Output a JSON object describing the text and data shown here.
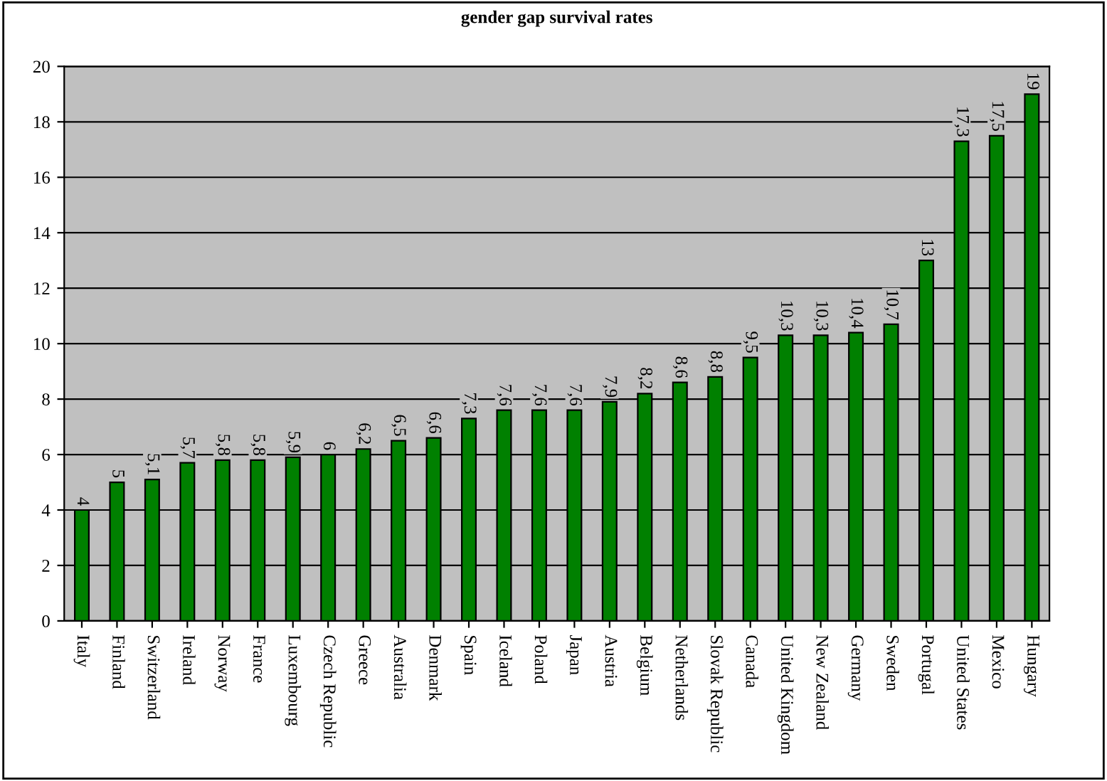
{
  "chart_data": {
    "type": "bar",
    "title": "gender gap survival rates",
    "categories": [
      "Italy",
      "Finland",
      "Switzerland",
      "Ireland",
      "Norway",
      "France",
      "Luxembourg",
      "Czech Republic",
      "Greece",
      "Australia",
      "Denmark",
      "Spain",
      "Iceland",
      "Poland",
      "Japan",
      "Austria",
      "Belgium",
      "Netherlands",
      "Slovak Republic",
      "Canada",
      "United Kingdom",
      "New Zealand",
      "Germany",
      "Sweden",
      "Portugal",
      "United States",
      "Mexico",
      "Hungary"
    ],
    "values": [
      4,
      5,
      5.1,
      5.7,
      5.8,
      5.8,
      5.9,
      6,
      6.2,
      6.5,
      6.6,
      7.3,
      7.6,
      7.6,
      7.6,
      7.9,
      8.2,
      8.6,
      8.8,
      9.5,
      10.3,
      10.3,
      10.4,
      10.7,
      13,
      17.3,
      17.5,
      19
    ],
    "value_labels": [
      "4",
      "5",
      "5,1",
      "5,7",
      "5,8",
      "5,8",
      "5,9",
      "6",
      "6,2",
      "6,5",
      "6,6",
      "7,3",
      "7,6",
      "7,6",
      "7,6",
      "7,9",
      "8,2",
      "8,6",
      "8,8",
      "9,5",
      "10,3",
      "10,3",
      "10,4",
      "10,7",
      "13",
      "17,3",
      "17,5",
      "19"
    ],
    "color": "#008000",
    "ylim": [
      0,
      20
    ],
    "yticks": [
      0,
      2,
      4,
      6,
      8,
      10,
      12,
      14,
      16,
      18,
      20
    ],
    "grid": "y",
    "legend": false
  }
}
